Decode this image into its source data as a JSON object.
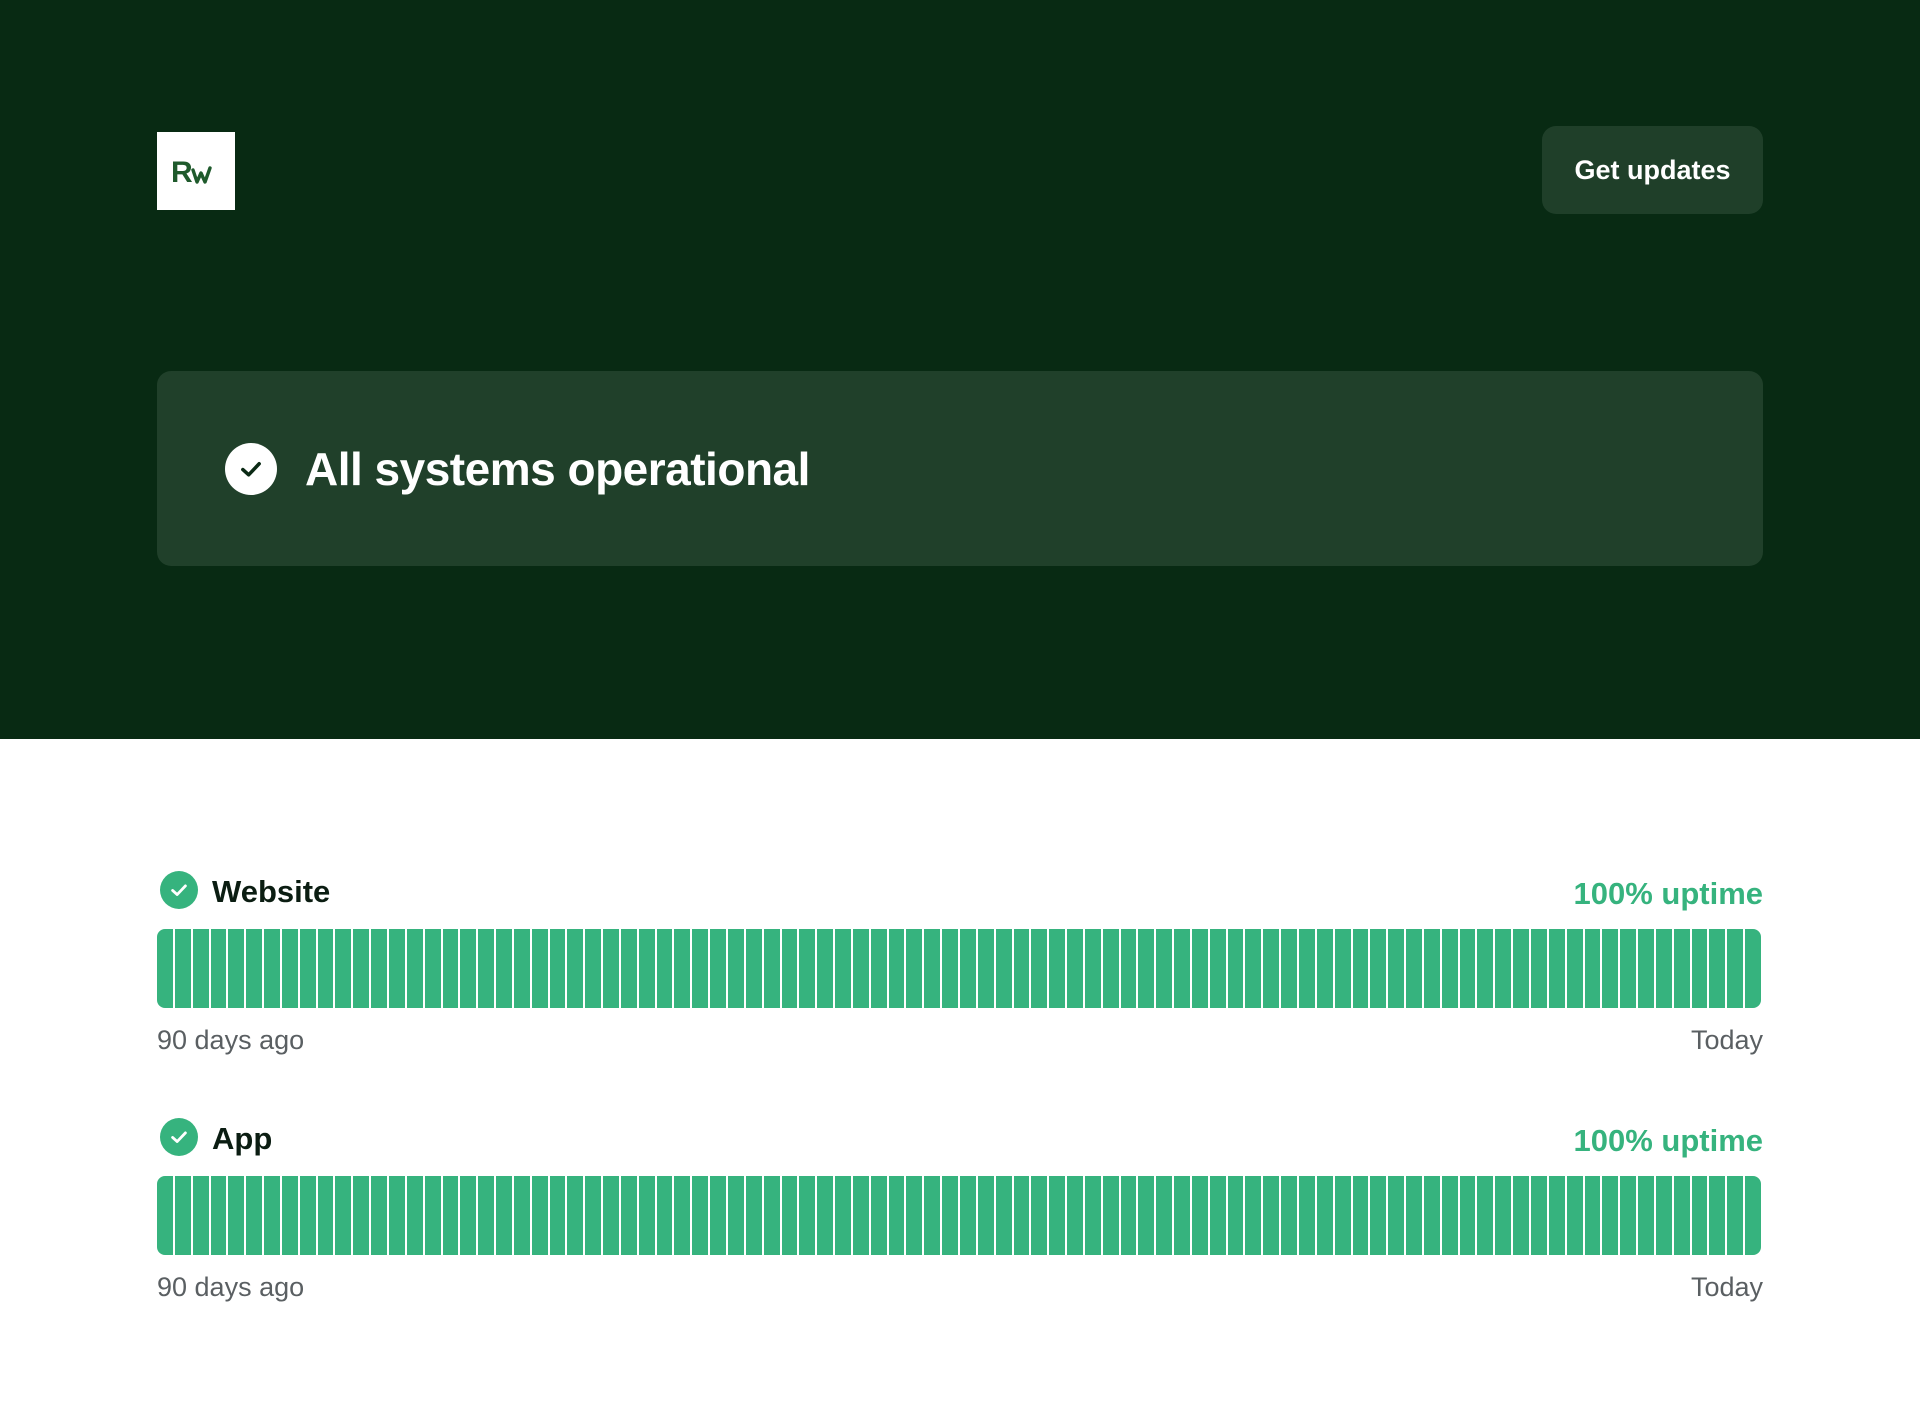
{
  "header": {
    "logo_text": "Rw",
    "get_updates_label": "Get updates"
  },
  "status": {
    "message": "All systems operational"
  },
  "components": [
    {
      "name": "Website",
      "uptime": "100% uptime",
      "days": 90,
      "start_label": "90 days ago",
      "end_label": "Today"
    },
    {
      "name": "App",
      "uptime": "100% uptime",
      "days": 90,
      "start_label": "90 days ago",
      "end_label": "Today"
    }
  ],
  "colors": {
    "hero_bg": "#082a13",
    "card_bg": "#20402a",
    "operational": "#36b37e"
  },
  "icons": {
    "status": "check-circle-icon",
    "component": "check-circle-icon"
  }
}
